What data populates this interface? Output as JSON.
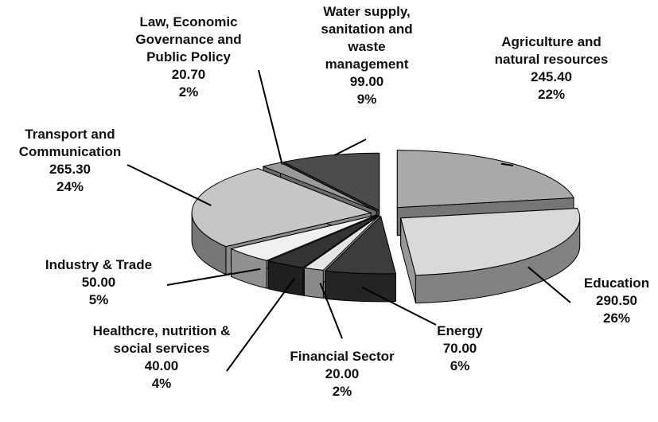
{
  "chart_data": {
    "type": "pie3d",
    "categories": [
      "Agriculture and natural resources",
      "Education",
      "Energy",
      "Financial Sector",
      "Healthcre, nutrition & social services",
      "Industry & Trade",
      "Transport and Communication",
      "Law, Economic Governance and Public Policy",
      "Water supply, sanitation and waste management"
    ],
    "values": [
      245.4,
      290.5,
      70,
      20,
      40,
      50,
      265.3,
      20.7,
      99
    ],
    "value_labels": [
      "245.40",
      "290.50",
      "70.00",
      "20.00",
      "40.00",
      "50.00",
      "265.30",
      "20.70",
      "99.00"
    ],
    "percentages": [
      22,
      26,
      6,
      2,
      4,
      5,
      24,
      2,
      9
    ],
    "percentage_labels": [
      "22%",
      "26%",
      "6%",
      "2%",
      "4%",
      "5%",
      "24%",
      "2%",
      "9%"
    ],
    "colors": [
      "#a9a9a9",
      "#d9d9d9",
      "#3c3c3c",
      "#e4e4e4",
      "#333333",
      "#f0f0f0",
      "#c6c6c6",
      "#9a9a9a",
      "#4c4c4c"
    ]
  }
}
